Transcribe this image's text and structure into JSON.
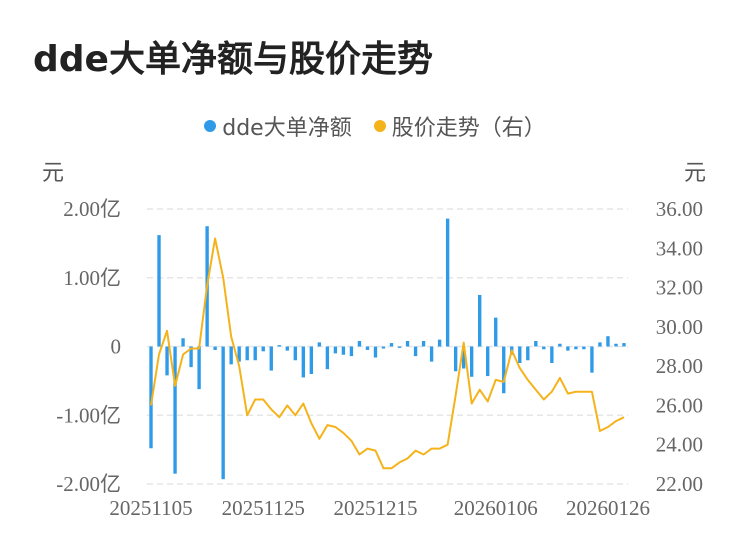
{
  "title": "dde大单净额与股价走势",
  "legend": {
    "series1": "dde大单净额",
    "series2": "股价走势（右）"
  },
  "units": {
    "left": "元",
    "right": "元"
  },
  "colors": {
    "bar": "#2f9be8",
    "line": "#f5b31b",
    "grid": "#e6e6e6"
  },
  "chart_data": {
    "type": "bar+line",
    "title": "dde大单净额与股价走势",
    "x": [
      "20251105",
      "20251106",
      "20251107",
      "20251110",
      "20251111",
      "20251112",
      "20251113",
      "20251114",
      "20251117",
      "20251118",
      "20251119",
      "20251120",
      "20251121",
      "20251124",
      "20251125",
      "20251126",
      "20251127",
      "20251128",
      "20251201",
      "20251202",
      "20251203",
      "20251204",
      "20251205",
      "20251208",
      "20251209",
      "20251210",
      "20251211",
      "20251212",
      "20251215",
      "20251216",
      "20251217",
      "20251218",
      "20251219",
      "20251222",
      "20251223",
      "20251224",
      "20251225",
      "20251226",
      "20251229",
      "20251230",
      "20251231",
      "20260102",
      "20260105",
      "20260106",
      "20260107",
      "20260108",
      "20260109",
      "20260112",
      "20260113",
      "20260114",
      "20260115",
      "20260116",
      "20260119",
      "20260120",
      "20260121",
      "20260122",
      "20260123",
      "20260126",
      "20260127",
      "20260128"
    ],
    "xticks": [
      "20251105",
      "20251125",
      "20251215",
      "20260106",
      "20260126"
    ],
    "series": [
      {
        "name": "dde大单净额",
        "type": "bar",
        "axis": "left",
        "values": [
          -1.48,
          1.62,
          -0.42,
          -1.85,
          0.12,
          -0.3,
          -0.62,
          1.75,
          -0.05,
          -1.93,
          -0.26,
          -0.22,
          -0.2,
          -0.2,
          -0.07,
          -0.35,
          0.02,
          -0.06,
          -0.2,
          -0.45,
          -0.4,
          0.06,
          -0.33,
          -0.1,
          -0.12,
          -0.14,
          0.08,
          -0.05,
          -0.16,
          -0.03,
          0.05,
          -0.02,
          0.08,
          -0.14,
          0.08,
          -0.22,
          0.1,
          1.86,
          -0.36,
          -0.32,
          -0.44,
          0.75,
          -0.43,
          0.42,
          -0.68,
          -0.12,
          -0.24,
          -0.2,
          0.08,
          -0.04,
          -0.24,
          0.04,
          -0.06,
          -0.04,
          -0.04,
          -0.38,
          0.06,
          0.15,
          0.04,
          0.05
        ]
      },
      {
        "name": "股价走势（右）",
        "type": "line",
        "axis": "right",
        "values": [
          26.0,
          28.6,
          29.8,
          27.0,
          28.6,
          28.9,
          28.9,
          32.1,
          34.5,
          32.5,
          29.5,
          28.0,
          25.5,
          26.3,
          26.3,
          25.8,
          25.4,
          26.0,
          25.5,
          26.1,
          25.1,
          24.3,
          25.0,
          24.9,
          24.6,
          24.2,
          23.5,
          23.8,
          23.7,
          22.8,
          22.8,
          23.1,
          23.3,
          23.7,
          23.5,
          23.8,
          23.8,
          24.0,
          26.5,
          29.2,
          26.1,
          26.8,
          26.2,
          27.3,
          27.2,
          28.8,
          27.9,
          27.3,
          26.8,
          26.3,
          26.7,
          27.4,
          26.6,
          26.7,
          26.7,
          26.7,
          24.7,
          24.9,
          25.2,
          25.4
        ]
      }
    ],
    "ylim_left": [
      -2.0,
      2.0
    ],
    "ylim_right": [
      22.0,
      36.0
    ],
    "yticks_left": [
      "2.00亿",
      "1.00亿",
      "0",
      "-1.00亿",
      "-2.00亿"
    ],
    "yticks_right": [
      "36.00",
      "34.00",
      "32.00",
      "30.00",
      "28.00",
      "26.00",
      "24.00",
      "22.00"
    ],
    "grid": true,
    "legend_position": "top-center"
  }
}
